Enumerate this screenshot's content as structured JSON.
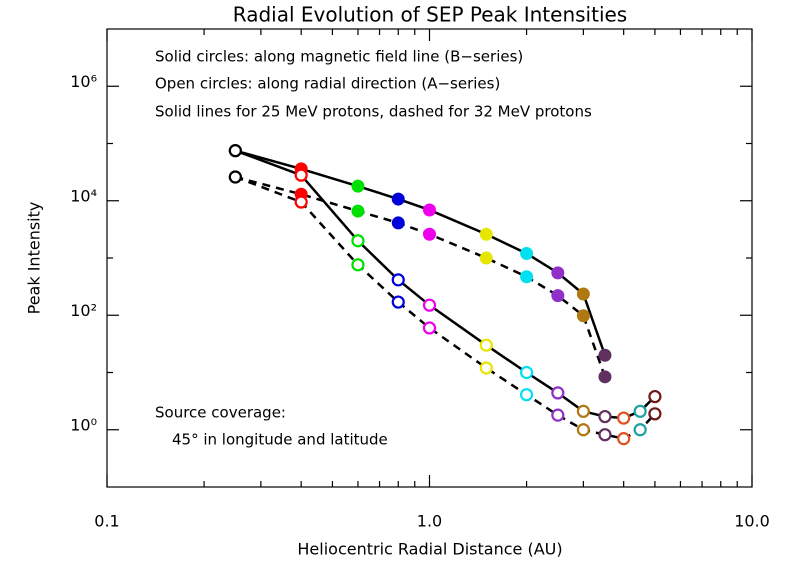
{
  "chart_data": {
    "type": "scatter-line",
    "title": "Radial Evolution of SEP Peak Intensities",
    "x_label": "Heliocentric Radial Distance (AU)",
    "y_label": "Peak Intensity",
    "annotations": [
      "Solid circles: along magnetic field line (B−series)",
      "Open circles: along radial direction (A−series)",
      "Solid lines for 25 MeV protons, dashed for 32 MeV protons"
    ],
    "note": [
      "Source coverage:",
      "45° in longitude and latitude"
    ],
    "xlog": true,
    "ylog": true,
    "xlim": [
      0.1,
      10
    ],
    "ylim": [
      0.1,
      10000000
    ],
    "xticks": [
      0.1,
      {
        "value": 1,
        "label": "1.0"
      },
      {
        "value": 10,
        "label": "10.0"
      }
    ],
    "xminor": [
      0.2,
      0.3,
      0.4,
      0.5,
      0.6,
      0.7,
      0.8,
      0.9,
      2,
      3,
      4,
      5,
      6,
      7,
      8,
      9
    ],
    "yticks": [
      {
        "value": 1,
        "label": "10⁰"
      },
      {
        "value": 100,
        "label": "10²"
      },
      {
        "value": 10000,
        "label": "10⁴"
      },
      {
        "value": 1000000,
        "label": "10⁶"
      }
    ],
    "yminor": [
      10,
      1000,
      100000
    ],
    "x": [
      0.25,
      0.4,
      0.6,
      0.8,
      1.0,
      1.5,
      2.0,
      2.5,
      3.0,
      3.5,
      4.0,
      4.5,
      5.0
    ],
    "point_colors": [
      "#000000",
      "#ff0000",
      "#00e000",
      "#0000dd",
      "#ee00ee",
      "#e6e600",
      "#00e0f0",
      "#9030c8",
      "#b07810",
      "#603060",
      "#e05020",
      "#20a0a0",
      "#701818"
    ],
    "line_color": "#000000",
    "series": [
      {
        "filled": true,
        "dashed": false,
        "values": [
          75000,
          36000,
          18000,
          10700,
          6900,
          2600,
          1200,
          550,
          235,
          20,
          null,
          null,
          null
        ]
      },
      {
        "filled": true,
        "dashed": true,
        "values": [
          26000,
          13000,
          6600,
          4100,
          2600,
          1000,
          470,
          220,
          98,
          8.4,
          null,
          null,
          null
        ]
      },
      {
        "filled": false,
        "dashed": false,
        "values": [
          75000,
          28000,
          2000,
          415,
          150,
          30,
          10,
          4.4,
          2.1,
          1.7,
          1.6,
          2.1,
          3.8
        ]
      },
      {
        "filled": false,
        "dashed": true,
        "values": [
          26000,
          9500,
          760,
          170,
          60,
          12,
          4.1,
          1.8,
          1.0,
          0.82,
          0.7,
          1.0,
          1.9
        ]
      }
    ]
  }
}
